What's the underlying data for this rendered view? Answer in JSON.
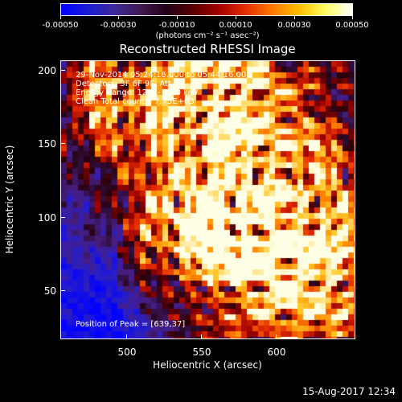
{
  "colorbar": {
    "tick_labels": [
      "-0.00050",
      "-0.00030",
      "-0.00010",
      "0.00010",
      "0.00030",
      "0.00050"
    ],
    "units": "(photons cm⁻² s⁻¹ asec⁻²)",
    "colors": [
      "#0000ff",
      "#1b1bd6",
      "#3d2a9a",
      "#401a50",
      "#220018",
      "#5a0000",
      "#a80000",
      "#e63000",
      "#ff7a00",
      "#ffc000",
      "#ffff66",
      "#ffffff"
    ]
  },
  "plot": {
    "title": "Reconstructed RHESSI Image",
    "info": [
      "29-Nov-2014 05:24:16.000 to 05:44:16.000",
      "Detectors: 3F 6F 9F, Att 0",
      "Energy Range: 12.0 - 25.0 keV",
      "Clean     Total counts: 7.75E+03"
    ],
    "peak": "Position of Peak = [639,37]",
    "xlabel": "Heliocentric X (arcsec)",
    "ylabel": "Heliocentric Y (arcsec)",
    "x_ticks": [
      "500",
      "550",
      "600"
    ],
    "y_ticks": [
      "50",
      "100",
      "150",
      "200"
    ],
    "xlim": [
      460,
      643
    ],
    "ylim": [
      15,
      205
    ]
  },
  "footer": {
    "timestamp": "15-Aug-2017 12:34"
  }
}
